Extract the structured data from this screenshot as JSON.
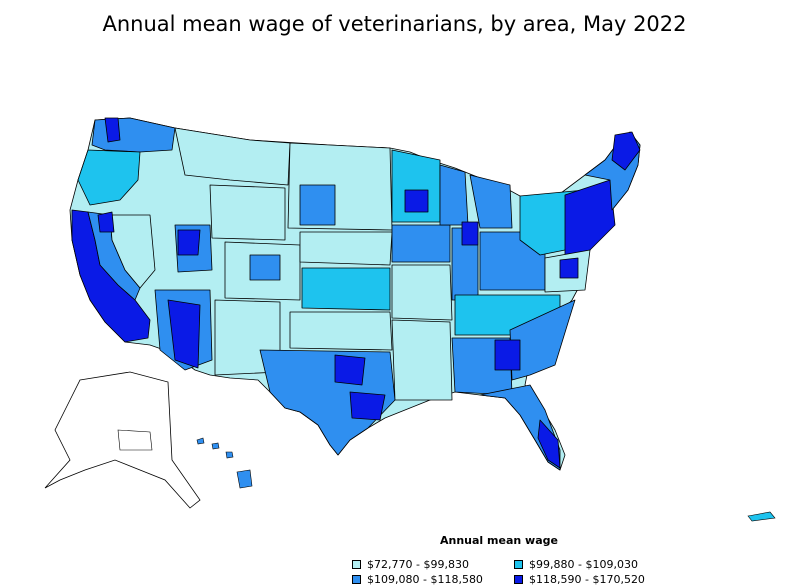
{
  "title": "Annual mean wage of veterinarians, by area, May 2022",
  "legend": {
    "title": "Annual mean wage",
    "items": [
      {
        "label": "$72,770 - $99,830",
        "color": "#b3eef2"
      },
      {
        "label": "$99,880 - $109,030",
        "color": "#1ec3ee"
      },
      {
        "label": "$109,080 - $118,580",
        "color": "#2f8ff0"
      },
      {
        "label": "$118,590 - $170,520",
        "color": "#0a1ae6"
      }
    ]
  },
  "colors": {
    "no_data": "#ffffff",
    "border": "#000000"
  }
}
